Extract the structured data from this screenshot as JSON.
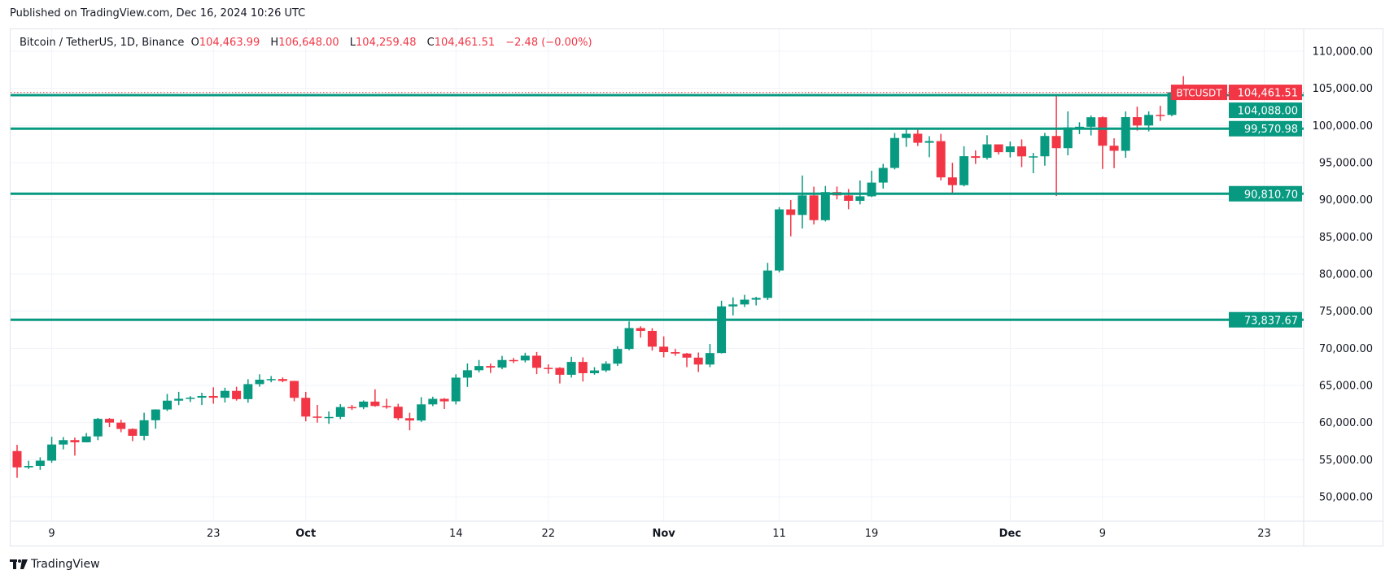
{
  "header": {
    "published": "Published on TradingView.com, Dec 16, 2024 10:26 UTC"
  },
  "legend": {
    "symbol": "Bitcoin / TetherUS, 1D, Binance",
    "o_label": "O",
    "o": "104,463.99",
    "h_label": "H",
    "h": "106,648.00",
    "l_label": "L",
    "l": "104,259.48",
    "c_label": "C",
    "c": "104,461.51",
    "change": "−2.48 (−0.00%)"
  },
  "footer": {
    "brand": "TradingView"
  },
  "colors": {
    "up": "#089981",
    "down": "#f23645",
    "grid": "#f0f3fa",
    "text": "#131722"
  },
  "chart_data": {
    "type": "candlestick",
    "ylim": [
      47000,
      113000
    ],
    "grid": true,
    "y_ticks": [
      "50,000.00",
      "55,000.00",
      "60,000.00",
      "65,000.00",
      "70,000.00",
      "75,000.00",
      "80,000.00",
      "85,000.00",
      "90,000.00",
      "95,000.00",
      "100,000.00",
      "105,000.00",
      "110,000.00"
    ],
    "y_tick_values": [
      50000,
      55000,
      60000,
      65000,
      70000,
      75000,
      80000,
      85000,
      90000,
      95000,
      100000,
      105000,
      110000
    ],
    "x_ticks": [
      {
        "label": "9",
        "index": 3,
        "bold": false
      },
      {
        "label": "23",
        "index": 17,
        "bold": false
      },
      {
        "label": "Oct",
        "index": 25,
        "bold": true
      },
      {
        "label": "14",
        "index": 38,
        "bold": false
      },
      {
        "label": "22",
        "index": 46,
        "bold": false
      },
      {
        "label": "Nov",
        "index": 56,
        "bold": true
      },
      {
        "label": "11",
        "index": 66,
        "bold": false
      },
      {
        "label": "19",
        "index": 74,
        "bold": false
      },
      {
        "label": "Dec",
        "index": 86,
        "bold": true
      },
      {
        "label": "9",
        "index": 94,
        "bold": false
      },
      {
        "label": "23",
        "index": 108,
        "bold": false
      }
    ],
    "first_date": "2024-09-06",
    "ohlc": [
      [
        56160,
        56995,
        52550,
        53962
      ],
      [
        53962,
        54850,
        53745,
        54160
      ],
      [
        54160,
        55318,
        53629,
        54869
      ],
      [
        54869,
        58088,
        54591,
        57042
      ],
      [
        57042,
        58044,
        56386,
        57635
      ],
      [
        57635,
        57981,
        55545,
        57338
      ],
      [
        57338,
        58588,
        57324,
        58132
      ],
      [
        58132,
        60625,
        57632,
        60498
      ],
      [
        60498,
        60610,
        59400,
        59993
      ],
      [
        59993,
        60380,
        58696,
        59132
      ],
      [
        59132,
        59210,
        57493,
        58213
      ],
      [
        58213,
        61320,
        57610,
        60309
      ],
      [
        60309,
        61786,
        59174,
        61759
      ],
      [
        61759,
        63850,
        61555,
        62947
      ],
      [
        62947,
        64133,
        62350,
        63201
      ],
      [
        63201,
        63559,
        62758,
        63348
      ],
      [
        63348,
        64000,
        62357,
        63578
      ],
      [
        63578,
        64745,
        62538,
        63339
      ],
      [
        63339,
        64688,
        62700,
        64262
      ],
      [
        64262,
        64817,
        62947,
        63152
      ],
      [
        63152,
        65839,
        62670,
        65173
      ],
      [
        65173,
        66498,
        64819,
        65769
      ],
      [
        65769,
        66260,
        65422,
        65858
      ],
      [
        65858,
        66076,
        65432,
        65602
      ],
      [
        65602,
        65618,
        62856,
        63327
      ],
      [
        63327,
        64130,
        60164,
        60805
      ],
      [
        60805,
        62370,
        59981,
        60650
      ],
      [
        60650,
        61500,
        59828,
        60752
      ],
      [
        60752,
        62484,
        60459,
        62086
      ],
      [
        62086,
        62370,
        61689,
        62058
      ],
      [
        62058,
        62975,
        61798,
        62819
      ],
      [
        62819,
        64478,
        62128,
        62224
      ],
      [
        62224,
        63200,
        61860,
        62131
      ],
      [
        62131,
        62523,
        60305,
        60583
      ],
      [
        60583,
        61320,
        58946,
        60274
      ],
      [
        60274,
        63417,
        60080,
        62445
      ],
      [
        62445,
        63480,
        62209,
        63193
      ],
      [
        63193,
        63285,
        61824,
        62851
      ],
      [
        62851,
        66500,
        62442,
        66046
      ],
      [
        66046,
        67950,
        64800,
        67041
      ],
      [
        67041,
        68424,
        66750,
        67612
      ],
      [
        67612,
        67939,
        66666,
        67399
      ],
      [
        67399,
        68969,
        67177,
        68418
      ],
      [
        68418,
        68694,
        68010,
        68362
      ],
      [
        68362,
        69400,
        68100,
        69001
      ],
      [
        69001,
        69500,
        66518,
        67367
      ],
      [
        67367,
        67836,
        66571,
        67361
      ],
      [
        67361,
        67450,
        65260,
        66432
      ],
      [
        66432,
        68850,
        66053,
        68161
      ],
      [
        68161,
        68779,
        65521,
        66642
      ],
      [
        66642,
        67454,
        66439,
        67014
      ],
      [
        67014,
        68250,
        66792,
        67929
      ],
      [
        67929,
        70270,
        67618,
        69907
      ],
      [
        69907,
        73620,
        69730,
        72720
      ],
      [
        72720,
        72961,
        71436,
        72339
      ],
      [
        72339,
        72700,
        69685,
        70215
      ],
      [
        70215,
        71600,
        68779,
        69482
      ],
      [
        69482,
        69914,
        69000,
        69289
      ],
      [
        69289,
        69381,
        67458,
        68741
      ],
      [
        68741,
        69433,
        66803,
        67811
      ],
      [
        67811,
        70577,
        67458,
        69359
      ],
      [
        69359,
        76400,
        69298,
        75640
      ],
      [
        75640,
        76849,
        74417,
        75904
      ],
      [
        75904,
        77199,
        75559,
        76545
      ],
      [
        76545,
        76932,
        75773,
        76778
      ],
      [
        76778,
        81500,
        76492,
        80474
      ],
      [
        80474,
        89000,
        80216,
        88701
      ],
      [
        88701,
        89956,
        85072,
        87955
      ],
      [
        87955,
        93265,
        86127,
        90584
      ],
      [
        90584,
        91765,
        86668,
        87250
      ],
      [
        87250,
        91850,
        87073,
        91032
      ],
      [
        91032,
        91779,
        90056,
        90586
      ],
      [
        90586,
        91449,
        88722,
        89855
      ],
      [
        89855,
        92594,
        89376,
        90465
      ],
      [
        90465,
        93905,
        90357,
        92310
      ],
      [
        92310,
        94831,
        91500,
        94286
      ],
      [
        94286,
        98988,
        94081,
        98317
      ],
      [
        98317,
        99588,
        97122,
        98892
      ],
      [
        98892,
        99500,
        97233,
        97672
      ],
      [
        97672,
        98564,
        95734,
        97900
      ],
      [
        97900,
        98871,
        92600,
        93010
      ],
      [
        93010,
        94973,
        90791,
        91965
      ],
      [
        91965,
        97208,
        91792,
        95863
      ],
      [
        95863,
        96650,
        94827,
        95643
      ],
      [
        95643,
        98693,
        95407,
        97460
      ],
      [
        97460,
        97463,
        96092,
        96407
      ],
      [
        96407,
        97836,
        95693,
        97185
      ],
      [
        97185,
        98130,
        94395,
        95840
      ],
      [
        95840,
        96305,
        93578,
        95849
      ],
      [
        95849,
        99000,
        94587,
        98587
      ],
      [
        98587,
        104088,
        90500,
        96945
      ],
      [
        96945,
        101898,
        95981,
        99740
      ],
      [
        99740,
        100439,
        98844,
        99831
      ],
      [
        99831,
        101350,
        98657,
        101109
      ],
      [
        101109,
        101215,
        94150,
        97276
      ],
      [
        97276,
        98270,
        94256,
        96593
      ],
      [
        96593,
        101888,
        95658,
        101125
      ],
      [
        101125,
        102540,
        99311,
        100000
      ],
      [
        100000,
        101895,
        99205,
        101424
      ],
      [
        101424,
        102650,
        100609,
        101420
      ],
      [
        101420,
        105250,
        101237,
        104463.99
      ],
      [
        104463.99,
        106648,
        104259.48,
        104461.51
      ]
    ],
    "horizontal_lines": [
      {
        "value": 104088,
        "label": "104,088.00"
      },
      {
        "value": 99570.98,
        "label": "99,570.98"
      },
      {
        "value": 90810.7,
        "label": "90,810.70"
      },
      {
        "value": 73837.67,
        "label": "73,837.67"
      }
    ],
    "last_price": {
      "value": 104461.51,
      "label": "104,461.51",
      "symbol": "BTCUSDT"
    }
  }
}
